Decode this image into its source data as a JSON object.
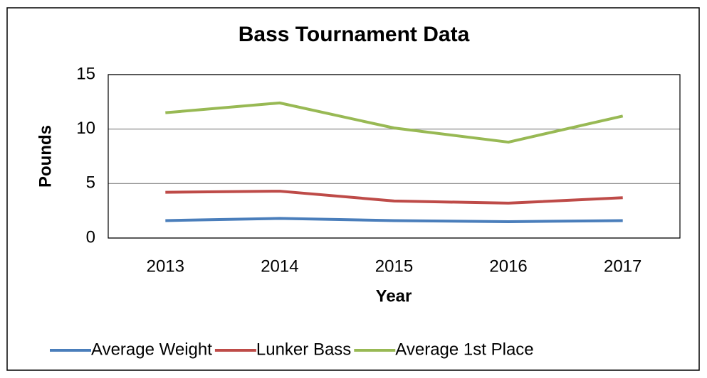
{
  "chart_data": {
    "type": "line",
    "title": "Bass Tournament Data",
    "xlabel": "Year",
    "ylabel": "Pounds",
    "categories": [
      "2013",
      "2014",
      "2015",
      "2016",
      "2017"
    ],
    "series": [
      {
        "name": "Average Weight",
        "color": "#4a7ebb",
        "values": [
          1.6,
          1.8,
          1.6,
          1.5,
          1.6
        ]
      },
      {
        "name": "Lunker Bass",
        "color": "#be4b48",
        "values": [
          4.2,
          4.3,
          3.4,
          3.2,
          3.7
        ]
      },
      {
        "name": "Average 1st Place",
        "color": "#98b954",
        "values": [
          11.5,
          12.4,
          10.1,
          8.8,
          11.2
        ]
      }
    ],
    "ylim": [
      0,
      15
    ],
    "yticks": [
      0,
      5,
      10,
      15
    ],
    "grid": true,
    "legend": "bottom"
  }
}
